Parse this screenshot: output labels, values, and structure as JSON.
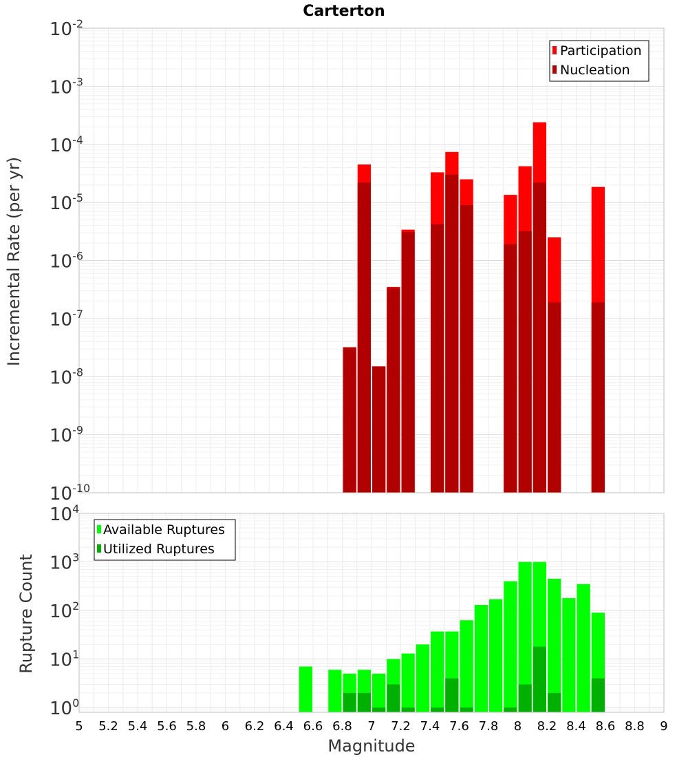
{
  "chart_data": [
    {
      "type": "bar",
      "title": "Carterton",
      "ylabel": "Incremental Rate (per yr)",
      "xlabel": "",
      "xlim": [
        5,
        9
      ],
      "ylim": [
        1e-10,
        0.01
      ],
      "yscale": "log",
      "bin_width": 0.1,
      "grid": true,
      "legend_position": "top-right",
      "y_ticks": [
        {
          "base": "10",
          "exp": "-10"
        },
        {
          "base": "10",
          "exp": "-9"
        },
        {
          "base": "10",
          "exp": "-8"
        },
        {
          "base": "10",
          "exp": "-7"
        },
        {
          "base": "10",
          "exp": "-6"
        },
        {
          "base": "10",
          "exp": "-5"
        },
        {
          "base": "10",
          "exp": "-4"
        },
        {
          "base": "10",
          "exp": "-3"
        },
        {
          "base": "10",
          "exp": "-2"
        }
      ],
      "series": [
        {
          "name": "Participation",
          "color": "#ff0000",
          "x": [
            6.85,
            6.95,
            7.05,
            7.15,
            7.25,
            7.45,
            7.55,
            7.65,
            7.95,
            8.05,
            8.15,
            8.25,
            8.55
          ],
          "values": [
            3.2e-08,
            4.5e-05,
            1.5e-08,
            3.5e-07,
            3.4e-06,
            3.3e-05,
            7.4e-05,
            2.5e-05,
            1.35e-05,
            4.2e-05,
            0.00024,
            2.5e-06,
            1.85e-05
          ]
        },
        {
          "name": "Nucleation",
          "color": "#b00000",
          "x": [
            6.85,
            6.95,
            7.05,
            7.15,
            7.25,
            7.45,
            7.55,
            7.65,
            7.95,
            8.05,
            8.15,
            8.25,
            8.55
          ],
          "values": [
            3.2e-08,
            2.2e-05,
            1.5e-08,
            3.3e-07,
            3.1e-06,
            4.2e-06,
            3e-05,
            9e-06,
            1.9e-06,
            3.2e-06,
            2.2e-05,
            1.9e-07,
            1.9e-07
          ]
        }
      ]
    },
    {
      "type": "bar",
      "title": "",
      "ylabel": "Rupture Count",
      "xlabel": "Magnitude",
      "xlim": [
        5,
        9
      ],
      "ylim": [
        0.8,
        10000
      ],
      "yscale": "log",
      "bin_width": 0.1,
      "grid": true,
      "legend_position": "top-left",
      "x_ticks": [
        "5",
        "5.2",
        "5.4",
        "5.6",
        "5.8",
        "6",
        "6.2",
        "6.4",
        "6.6",
        "6.8",
        "7",
        "7.2",
        "7.4",
        "7.6",
        "7.8",
        "8",
        "8.2",
        "8.4",
        "8.6",
        "8.8",
        "9"
      ],
      "y_ticks": [
        {
          "base": "10",
          "exp": "0"
        },
        {
          "base": "10",
          "exp": "1"
        },
        {
          "base": "10",
          "exp": "2"
        },
        {
          "base": "10",
          "exp": "3"
        },
        {
          "base": "10",
          "exp": "4"
        }
      ],
      "series": [
        {
          "name": "Available Ruptures",
          "color": "#00ff00",
          "x": [
            6.55,
            6.75,
            6.85,
            6.95,
            7.05,
            7.15,
            7.25,
            7.35,
            7.45,
            7.55,
            7.65,
            7.75,
            7.85,
            7.95,
            8.05,
            8.15,
            8.25,
            8.35,
            8.45,
            8.55
          ],
          "values": [
            7,
            6,
            5,
            6,
            5,
            10,
            13,
            20,
            37,
            37,
            63,
            130,
            170,
            400,
            1000,
            1000,
            450,
            180,
            350,
            90
          ]
        },
        {
          "name": "Utilized Ruptures",
          "color": "#00b000",
          "x": [
            6.85,
            6.95,
            7.05,
            7.15,
            7.25,
            7.45,
            7.55,
            7.65,
            7.95,
            8.05,
            8.15,
            8.25,
            8.55
          ],
          "values": [
            2,
            2,
            1,
            3,
            1,
            1,
            4,
            1,
            1,
            3,
            18,
            2,
            4
          ]
        }
      ]
    }
  ]
}
